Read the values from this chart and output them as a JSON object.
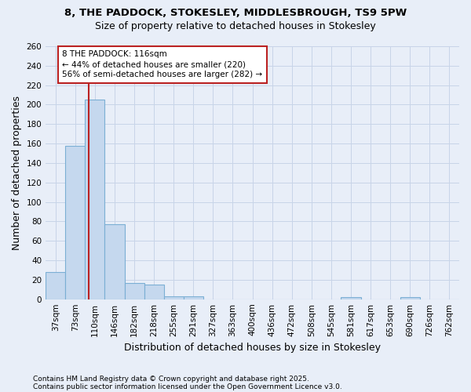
{
  "title": "8, THE PADDOCK, STOKESLEY, MIDDLESBROUGH, TS9 5PW",
  "subtitle": "Size of property relative to detached houses in Stokesley",
  "xlabel": "Distribution of detached houses by size in Stokesley",
  "ylabel": "Number of detached properties",
  "categories": [
    "37sqm",
    "73sqm",
    "110sqm",
    "146sqm",
    "182sqm",
    "218sqm",
    "255sqm",
    "291sqm",
    "327sqm",
    "363sqm",
    "400sqm",
    "436sqm",
    "472sqm",
    "508sqm",
    "545sqm",
    "581sqm",
    "617sqm",
    "653sqm",
    "690sqm",
    "726sqm",
    "762sqm"
  ],
  "values": [
    28,
    158,
    205,
    77,
    17,
    15,
    3,
    3,
    0,
    0,
    0,
    0,
    0,
    0,
    0,
    2,
    0,
    0,
    2,
    0,
    0
  ],
  "bar_color": "#c5d8ee",
  "bar_edgecolor": "#7bafd4",
  "grid_color": "#c8d4e8",
  "background_color": "#e8eef8",
  "vline_color": "#bb2222",
  "annotation_text": "8 THE PADDOCK: 116sqm\n← 44% of detached houses are smaller (220)\n56% of semi-detached houses are larger (282) →",
  "annotation_box_facecolor": "#ffffff",
  "annotation_box_edgecolor": "#bb2222",
  "ylim": [
    0,
    260
  ],
  "yticks": [
    0,
    20,
    40,
    60,
    80,
    100,
    120,
    140,
    160,
    180,
    200,
    220,
    240,
    260
  ],
  "footer1": "Contains HM Land Registry data © Crown copyright and database right 2025.",
  "footer2": "Contains public sector information licensed under the Open Government Licence v3.0.",
  "title_fontsize": 9.5,
  "subtitle_fontsize": 9,
  "axis_label_fontsize": 9,
  "tick_fontsize": 7.5,
  "annotation_fontsize": 7.5,
  "footer_fontsize": 6.5
}
